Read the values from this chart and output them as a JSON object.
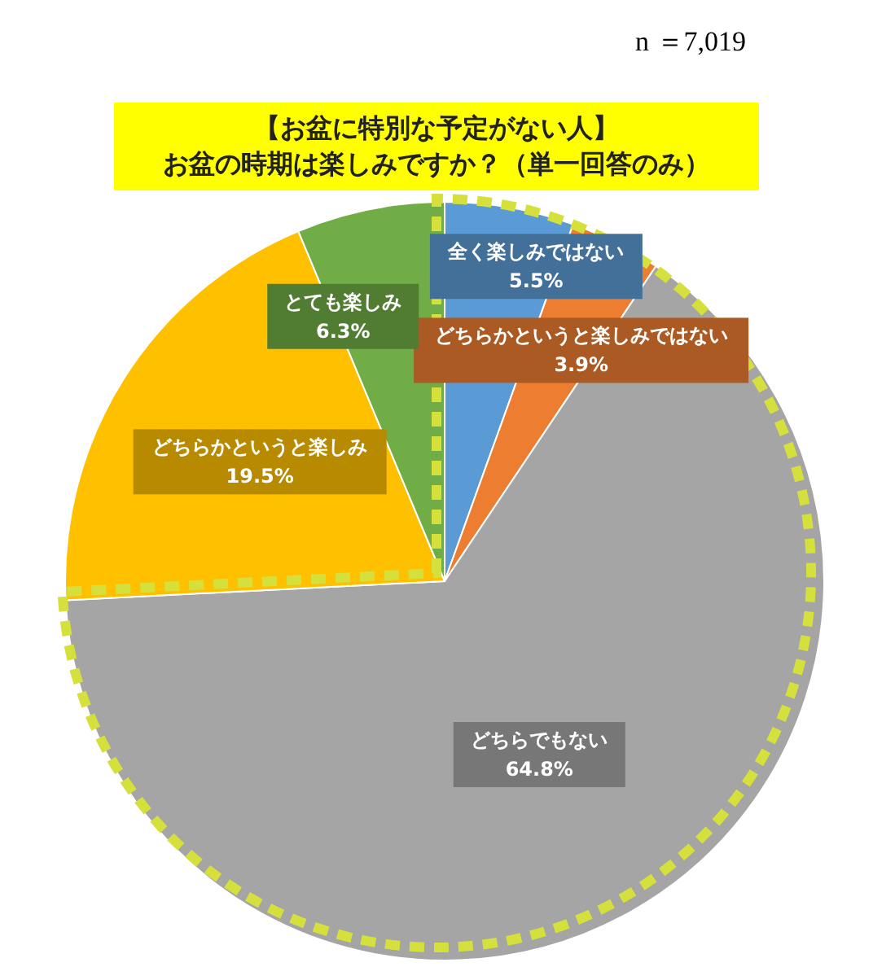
{
  "chart_data": {
    "type": "pie",
    "title": "【お盆に特別な予定がない人】",
    "subtitle": "お盆の時期は楽しみですか？（単一回答のみ）",
    "annotations": [
      "n ＝7,019"
    ],
    "categories": [
      "全く楽しみではない",
      "どちらかというと楽しみではない",
      "どちらでもない",
      "どちらかというと楽しみ",
      "とても楽しみ"
    ],
    "values": [
      5.5,
      3.9,
      64.8,
      19.5,
      6.3
    ],
    "colors": [
      "#5b9bd5",
      "#ed7d31",
      "#a5a5a5",
      "#ffc000",
      "#70ad47"
    ],
    "value_labels": [
      "5.5%",
      "3.9%",
      "64.8%",
      "19.5%",
      "6.3%"
    ]
  }
}
